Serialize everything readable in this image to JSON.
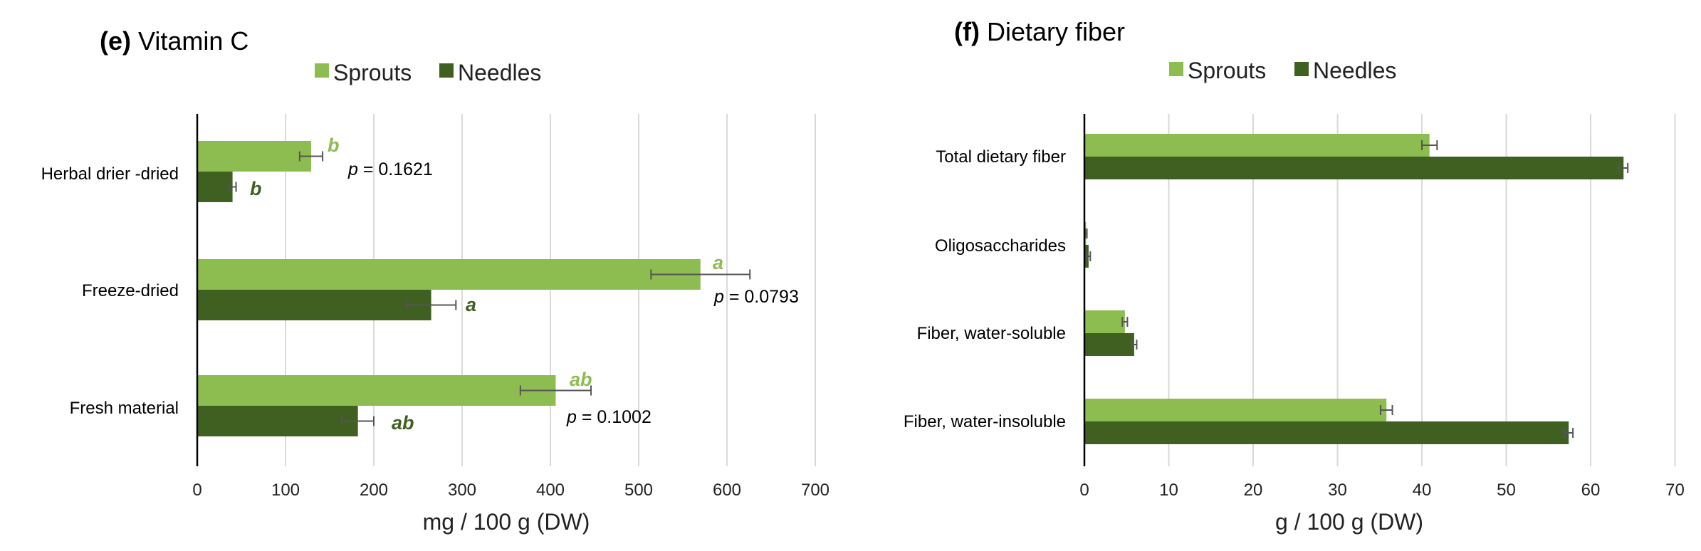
{
  "colors": {
    "sprouts": "#8dbd50",
    "needles": "#3f6020",
    "grid": "#d9d9d9",
    "axis": "#000000",
    "error": "#555555"
  },
  "chart_data": [
    {
      "type": "bar",
      "orientation": "horizontal",
      "title_prefix": "(e)",
      "title": "Vitamin C",
      "xlabel": "mg / 100 g (DW)",
      "xlim": [
        0,
        700
      ],
      "xticks": [
        0,
        100,
        200,
        300,
        400,
        500,
        600,
        700
      ],
      "xtick_labels": [
        "0",
        "100",
        "200",
        "300",
        "400",
        "500",
        "600",
        "700"
      ],
      "legend": [
        "Sprouts",
        "Needles"
      ],
      "categories": [
        "Herbal drier -dried",
        "Freeze-dried",
        "Fresh material"
      ],
      "series": [
        {
          "name": "Sprouts",
          "values": [
            129,
            570,
            406
          ],
          "errors": [
            13,
            56,
            40
          ],
          "letters": [
            "b",
            "a",
            "ab"
          ]
        },
        {
          "name": "Needles",
          "values": [
            40,
            265,
            182
          ],
          "errors": [
            4,
            28,
            18
          ],
          "letters": [
            "b",
            "a",
            "ab"
          ]
        }
      ],
      "annotations": [
        {
          "label_prefix": "p",
          "label_text": " = 0.1621"
        },
        {
          "label_prefix": "p",
          "label_text": " = 0.0793"
        },
        {
          "label_prefix": "p",
          "label_text": " = 0.1002"
        }
      ],
      "grid": true
    },
    {
      "type": "bar",
      "orientation": "horizontal",
      "title_prefix": "(f)",
      "title": "Dietary fiber",
      "xlabel": "g / 100 g (DW)",
      "xlim": [
        0,
        70
      ],
      "xticks": [
        0,
        10,
        20,
        30,
        40,
        50,
        60,
        70
      ],
      "xtick_labels": [
        "0",
        "10",
        "20",
        "30",
        "40",
        "50",
        "60",
        "70"
      ],
      "legend": [
        "Sprouts",
        "Needles"
      ],
      "categories": [
        "Total dietary fiber",
        "Oligosaccharides",
        "Fiber, water-soluble",
        "Fiber, water-insoluble"
      ],
      "series": [
        {
          "name": "Sprouts",
          "values": [
            40.9,
            0.2,
            4.8,
            35.8
          ],
          "errors": [
            0.9,
            0.1,
            0.3,
            0.7
          ]
        },
        {
          "name": "Needles",
          "values": [
            63.9,
            0.5,
            5.9,
            57.4
          ],
          "errors": [
            0.5,
            0.2,
            0.3,
            0.5
          ]
        }
      ],
      "grid": true
    }
  ]
}
